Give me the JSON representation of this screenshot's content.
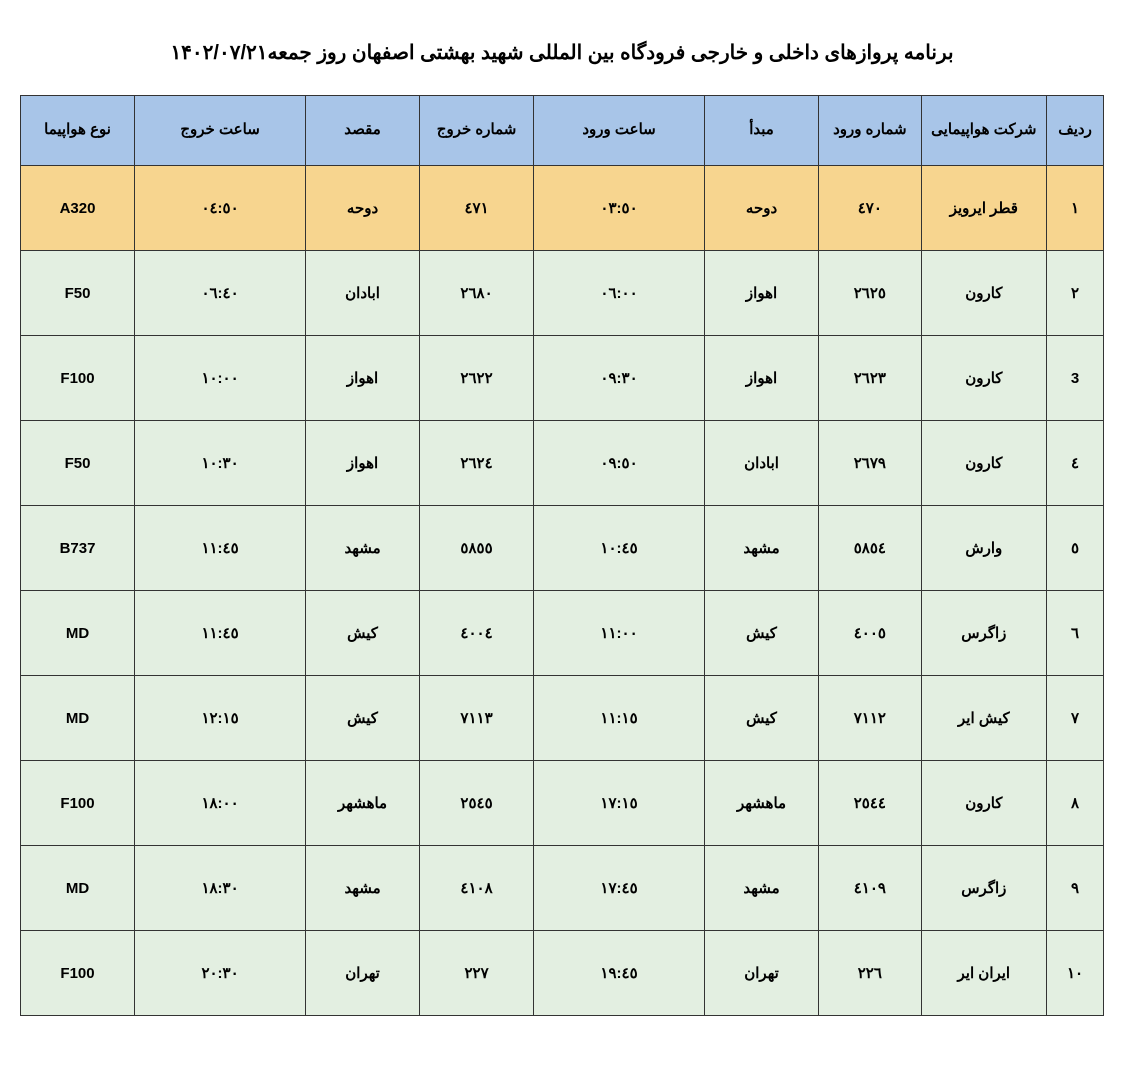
{
  "title": "برنامه پروازهای داخلی و خارجی فرودگاه بین المللی شهید بهشتی اصفهان روز جمعه۱۴۰۲/۰۷/۲۱",
  "table": {
    "headers": {
      "row": "ردیف",
      "airline": "شرکت هواپیمایی",
      "arr_no": "شماره ورود",
      "origin": "مبدأ",
      "arr_time": "ساعت ورود",
      "dep_no": "شماره خروج",
      "dest": "مقصد",
      "dep_time": "ساعت خروج",
      "aircraft": "نوع هواپیما"
    },
    "colors": {
      "header_bg": "#a8c5e8",
      "highlight_bg": "#f7d58f",
      "normal_bg": "#e3efe1",
      "border": "#333333",
      "text": "#000000"
    },
    "rows": [
      {
        "row": "۱",
        "airline": "قطر ایرویز",
        "arr_no": "٤٧٠",
        "origin": "دوحه",
        "arr_time": "٠٣:٥٠",
        "dep_no": "٤٧١",
        "dest": "دوحه",
        "dep_time": "٠٤:٥٠",
        "aircraft": "A320",
        "highlight": true
      },
      {
        "row": "۲",
        "airline": "کارون",
        "arr_no": "٢٦٢٥",
        "origin": "اهواز",
        "arr_time": "٠٦:٠٠",
        "dep_no": "٢٦٨٠",
        "dest": "ابادان",
        "dep_time": "٠٦:٤٠",
        "aircraft": "F50",
        "highlight": false
      },
      {
        "row": "3",
        "airline": "کارون",
        "arr_no": "٢٦٢٣",
        "origin": "اهواز",
        "arr_time": "٠٩:٣٠",
        "dep_no": "٢٦٢٢",
        "dest": "اهواز",
        "dep_time": "١٠:٠٠",
        "aircraft": "F100",
        "highlight": false
      },
      {
        "row": "٤",
        "airline": "کارون",
        "arr_no": "٢٦٧٩",
        "origin": "ابادان",
        "arr_time": "٠٩:٥٠",
        "dep_no": "٢٦٢٤",
        "dest": "اهواز",
        "dep_time": "١٠:٣٠",
        "aircraft": "F50",
        "highlight": false
      },
      {
        "row": "٥",
        "airline": "وارش",
        "arr_no": "٥٨٥٤",
        "origin": "مشهد",
        "arr_time": "١٠:٤٥",
        "dep_no": "٥٨٥٥",
        "dest": "مشهد",
        "dep_time": "١١:٤٥",
        "aircraft": "B737",
        "highlight": false
      },
      {
        "row": "٦",
        "airline": "زاگرس",
        "arr_no": "٤٠٠٥",
        "origin": "کیش",
        "arr_time": "١١:٠٠",
        "dep_no": "٤٠٠٤",
        "dest": "کیش",
        "dep_time": "١١:٤٥",
        "aircraft": "MD",
        "highlight": false
      },
      {
        "row": "٧",
        "airline": "کیش ایر",
        "arr_no": "٧١١٢",
        "origin": "کیش",
        "arr_time": "١١:١٥",
        "dep_no": "٧١١٣",
        "dest": "کیش",
        "dep_time": "١٢:١٥",
        "aircraft": "MD",
        "highlight": false
      },
      {
        "row": "٨",
        "airline": "کارون",
        "arr_no": "٢٥٤٤",
        "origin": "ماهشهر",
        "arr_time": "١٧:١٥",
        "dep_no": "٢٥٤٥",
        "dest": "ماهشهر",
        "dep_time": "١٨:٠٠",
        "aircraft": "F100",
        "highlight": false
      },
      {
        "row": "٩",
        "airline": "زاگرس",
        "arr_no": "٤١٠٩",
        "origin": "مشهد",
        "arr_time": "١٧:٤٥",
        "dep_no": "٤١٠٨",
        "dest": "مشهد",
        "dep_time": "١٨:٣٠",
        "aircraft": "MD",
        "highlight": false
      },
      {
        "row": "١٠",
        "airline": "ایران ایر",
        "arr_no": "٢٢٦",
        "origin": "تهران",
        "arr_time": "١٩:٤٥",
        "dep_no": "٢٢٧",
        "dest": "تهران",
        "dep_time": "٢٠:٣٠",
        "aircraft": "F100",
        "highlight": false
      }
    ]
  }
}
